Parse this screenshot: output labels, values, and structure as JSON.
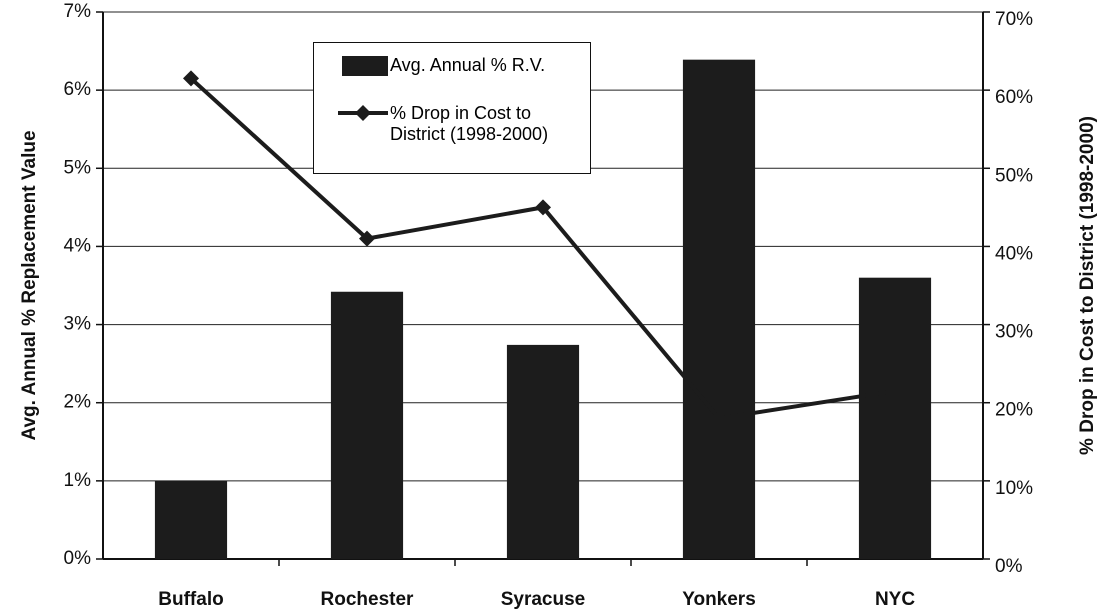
{
  "chart_data": {
    "type": "bar",
    "y_label": "Avg. Annual % Replacement Value",
    "y2_label": "% Drop in Cost to District (1998-2000)",
    "categories": [
      "Buffalo",
      "Rochester",
      "Syracuse",
      "Yonkers",
      "NYC"
    ],
    "series": [
      {
        "name": "Avg. Annual % R.V.",
        "type": "bar",
        "color": "#1c1c1c",
        "values": [
          1.0,
          3.42,
          2.74,
          6.39,
          3.6
        ]
      },
      {
        "name": "% Drop in Cost to District (1998-2000)",
        "type": "line",
        "axis": "y2",
        "color": "#1c1c1c",
        "values": [
          61.5,
          41,
          45,
          18,
          21.5
        ]
      }
    ],
    "ylim": [
      0,
      7
    ],
    "yticks": [
      {
        "value": 0,
        "label": "0%"
      },
      {
        "value": 1,
        "label": "1%"
      },
      {
        "value": 2,
        "label": "2%"
      },
      {
        "value": 3,
        "label": "3%"
      },
      {
        "value": 4,
        "label": "4%"
      },
      {
        "value": 5,
        "label": "5%"
      },
      {
        "value": 6,
        "label": "6%"
      },
      {
        "value": 7,
        "label": "7%"
      }
    ],
    "y2lim": [
      0,
      70
    ],
    "y2ticks": [
      {
        "value": 0,
        "label": "0%"
      },
      {
        "value": 10,
        "label": "10%"
      },
      {
        "value": 20,
        "label": "20%"
      },
      {
        "value": 30,
        "label": "30%"
      },
      {
        "value": 40,
        "label": "40%"
      },
      {
        "value": 50,
        "label": "50%"
      },
      {
        "value": 60,
        "label": "60%"
      },
      {
        "value": 70,
        "label": "70%"
      }
    ],
    "grid": true,
    "legend": "top-center"
  }
}
